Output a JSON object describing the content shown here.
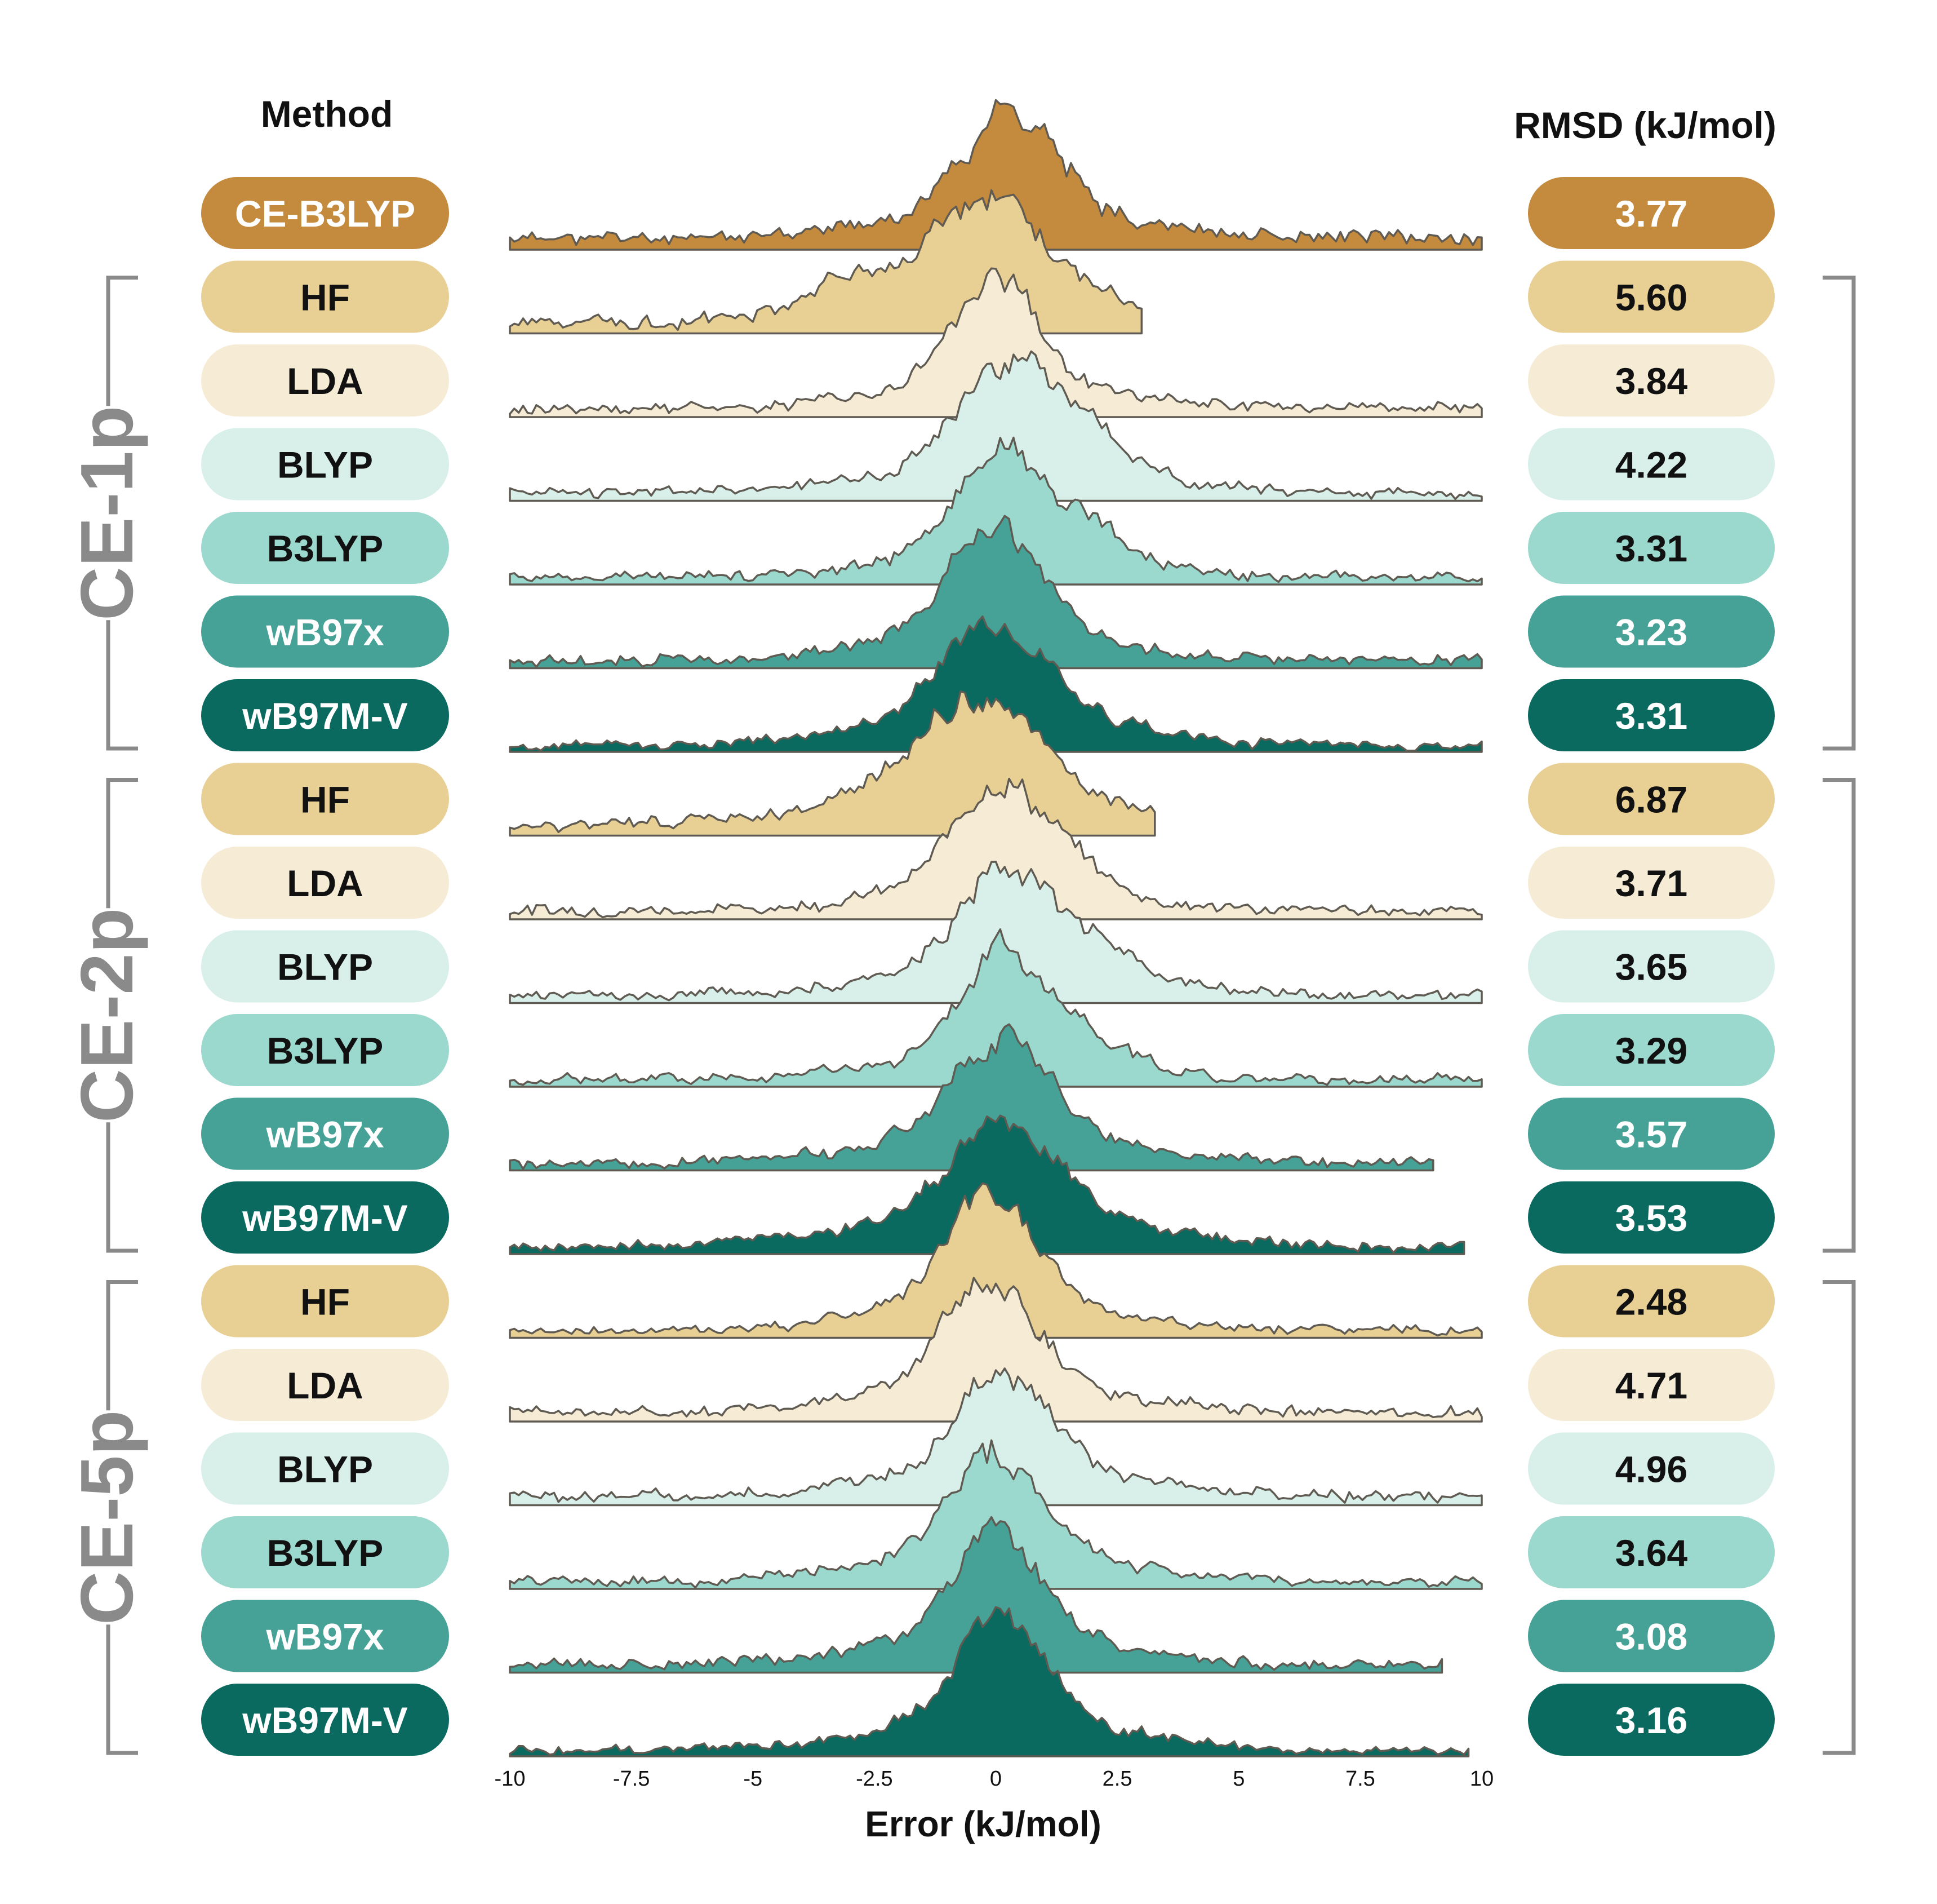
{
  "headers": {
    "method": "Method",
    "rmsd": "RMSD (kJ/mol)"
  },
  "colors": {
    "HF": "#e8cf94",
    "LDA": "#f6ecd6",
    "BLYP": "#d9efea",
    "B3LYP": "#9bd8cd",
    "wB97x": "#46a196",
    "wB97M-V": "#0a6a5f",
    "CE-B3LYP": "#c48a3d",
    "outline": "#5f5a52",
    "bracket": "#8a8a8a",
    "group_label": "#8a8a8a"
  },
  "chart_data": {
    "type": "area",
    "subtype": "ridgeline",
    "xlabel": "Error (kJ/mol)",
    "xlim": [
      -10,
      10
    ],
    "xticks": [
      "-10",
      "-7.5",
      "-5",
      "-2.5",
      "0",
      "2.5",
      "5",
      "7.5",
      "10"
    ],
    "groups": [
      {
        "label": "",
        "rows": [
          {
            "method": "CE-B3LYP",
            "rmsd": "3.77",
            "peak": 0.3,
            "width": 0.9,
            "tail": 0.09,
            "seed": 11,
            "x_end": 10
          }
        ]
      },
      {
        "label": "CE-1p",
        "rows": [
          {
            "method": "HF",
            "rmsd": "5.60",
            "peak": -0.2,
            "width": 1.1,
            "tail": 0.08,
            "seed": 21,
            "x_end": 3.0,
            "shoulder": -3.2
          },
          {
            "method": "LDA",
            "rmsd": "3.84",
            "peak": 0.0,
            "width": 0.8,
            "tail": 0.07,
            "seed": 22,
            "x_end": 10
          },
          {
            "method": "BLYP",
            "rmsd": "4.22",
            "peak": 0.3,
            "width": 1.0,
            "tail": 0.06,
            "seed": 23,
            "x_end": 10,
            "shoulder": 2.0
          },
          {
            "method": "B3LYP",
            "rmsd": "3.31",
            "peak": 0.1,
            "width": 0.8,
            "tail": 0.06,
            "seed": 24,
            "x_end": 10,
            "shoulder": 2.0
          },
          {
            "method": "wB97x",
            "rmsd": "3.23",
            "peak": 0.0,
            "width": 0.9,
            "tail": 0.06,
            "seed": 25,
            "x_end": 10
          },
          {
            "method": "wB97M-V",
            "rmsd": "3.31",
            "peak": 0.0,
            "width": 1.0,
            "tail": 0.05,
            "seed": 26,
            "x_end": 10
          }
        ]
      },
      {
        "label": "CE-2p",
        "rows": [
          {
            "method": "HF",
            "rmsd": "6.87",
            "peak": -0.4,
            "width": 1.2,
            "tail": 0.07,
            "seed": 31,
            "x_end": 3.3
          },
          {
            "method": "LDA",
            "rmsd": "3.71",
            "peak": 0.0,
            "width": 0.8,
            "tail": 0.07,
            "seed": 32,
            "x_end": 10,
            "shoulder": 1.5
          },
          {
            "method": "BLYP",
            "rmsd": "3.65",
            "peak": 0.2,
            "width": 0.9,
            "tail": 0.06,
            "seed": 33,
            "x_end": 10,
            "shoulder": 2.2
          },
          {
            "method": "B3LYP",
            "rmsd": "3.29",
            "peak": 0.1,
            "width": 0.8,
            "tail": 0.06,
            "seed": 34,
            "x_end": 10,
            "shoulder": 1.8
          },
          {
            "method": "wB97x",
            "rmsd": "3.57",
            "peak": 0.1,
            "width": 0.9,
            "tail": 0.06,
            "seed": 35,
            "x_end": 9.0
          },
          {
            "method": "wB97M-V",
            "rmsd": "3.53",
            "peak": 0.2,
            "width": 1.1,
            "tail": 0.05,
            "seed": 36,
            "x_end": 9.7
          }
        ]
      },
      {
        "label": "CE-5p",
        "rows": [
          {
            "method": "HF",
            "rmsd": "2.48",
            "peak": -0.1,
            "width": 0.9,
            "tail": 0.05,
            "seed": 41,
            "x_end": 10
          },
          {
            "method": "LDA",
            "rmsd": "4.71",
            "peak": -0.1,
            "width": 0.9,
            "tail": 0.07,
            "seed": 42,
            "x_end": 10
          },
          {
            "method": "BLYP",
            "rmsd": "4.96",
            "peak": 0.2,
            "width": 0.9,
            "tail": 0.07,
            "seed": 43,
            "x_end": 10
          },
          {
            "method": "B3LYP",
            "rmsd": "3.64",
            "peak": 0.0,
            "width": 0.9,
            "tail": 0.06,
            "seed": 44,
            "x_end": 10
          },
          {
            "method": "wB97x",
            "rmsd": "3.08",
            "peak": 0.0,
            "width": 0.9,
            "tail": 0.06,
            "seed": 45,
            "x_end": 9.2
          },
          {
            "method": "wB97M-V",
            "rmsd": "3.16",
            "peak": 0.1,
            "width": 0.9,
            "tail": 0.05,
            "seed": 46,
            "x_end": 9.8
          }
        ]
      }
    ]
  }
}
